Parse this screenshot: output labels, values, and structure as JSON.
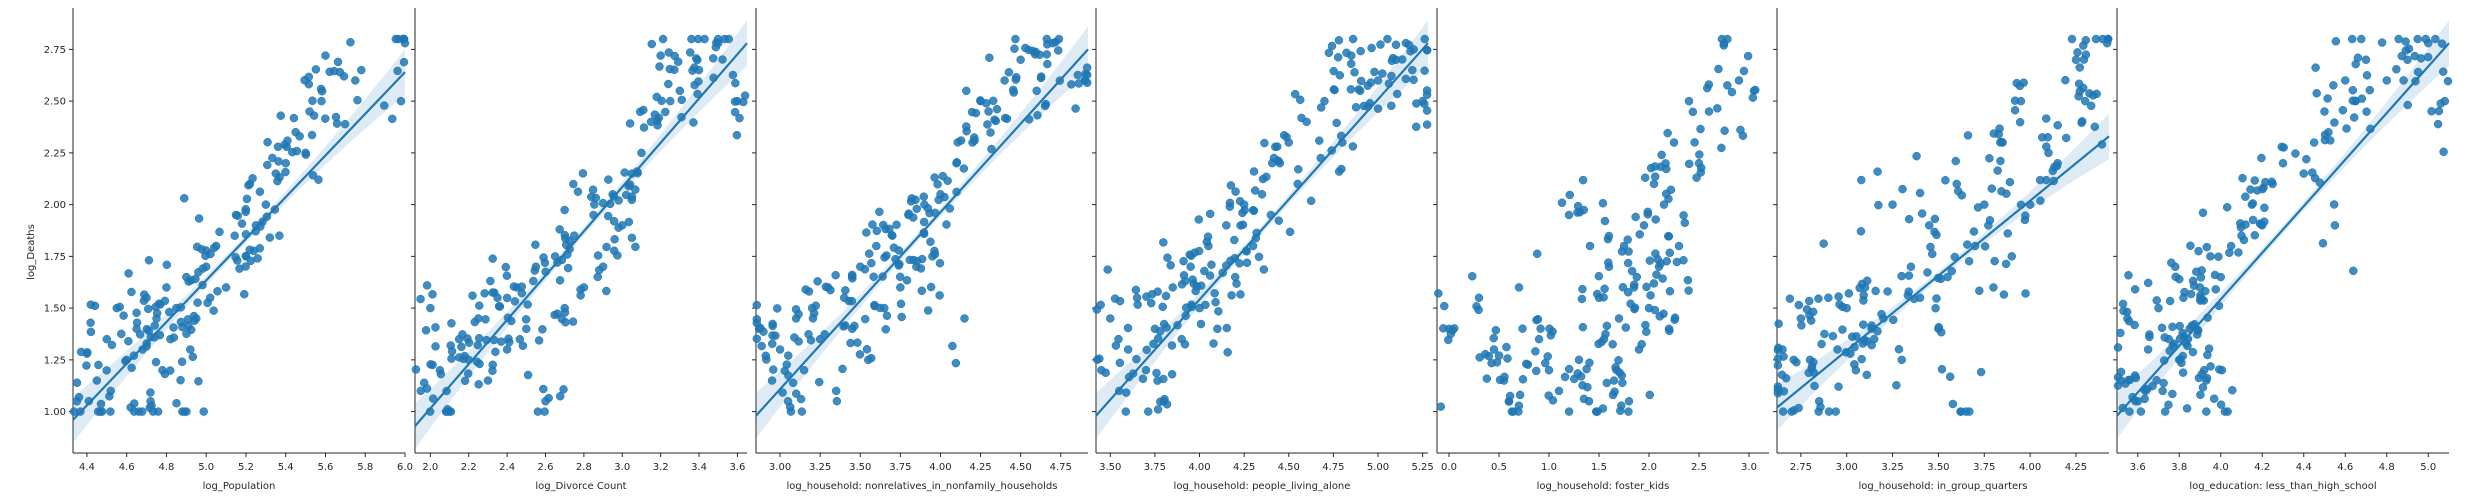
{
  "figure": {
    "ylabel": "log_Deaths"
  },
  "chart_data": [
    {
      "type": "scatter",
      "xlabel": "log_Population",
      "ylabel": "log_Deaths",
      "xlim": [
        4.33,
        6.0
      ],
      "ylim": [
        0.8,
        2.95
      ],
      "xticks": [
        4.4,
        4.6,
        4.8,
        5.0,
        5.2,
        5.4,
        5.6,
        5.8,
        6.0
      ],
      "xtick_labels": [
        "4.4",
        "4.6",
        "4.8",
        "5.0",
        "5.2",
        "5.4",
        "5.6",
        "5.8",
        "6.0"
      ],
      "yticks": [
        1.0,
        1.25,
        1.5,
        1.75,
        2.0,
        2.25,
        2.5,
        2.75
      ],
      "ytick_labels": [
        "1.00",
        "1.25",
        "1.50",
        "1.75",
        "2.00",
        "2.25",
        "2.50",
        "2.75"
      ],
      "regression": {
        "x": [
          4.33,
          6.0
        ],
        "y": [
          0.96,
          2.64
        ]
      },
      "n_points": 220,
      "points": [
        [
          4.35,
          1.05
        ],
        [
          4.4,
          1.28
        ],
        [
          4.45,
          1.15
        ],
        [
          4.5,
          1.35
        ],
        [
          4.52,
          1.1
        ],
        [
          4.55,
          1.5
        ],
        [
          4.6,
          1.25
        ],
        [
          4.62,
          1.02
        ],
        [
          4.65,
          1.4
        ],
        [
          4.68,
          1.3
        ],
        [
          4.7,
          1.55
        ],
        [
          4.72,
          1.05
        ],
        [
          4.75,
          1.45
        ],
        [
          4.78,
          1.2
        ],
        [
          4.8,
          1.6
        ],
        [
          4.82,
          1.35
        ],
        [
          4.85,
          1.5
        ],
        [
          4.88,
          1.0
        ],
        [
          4.9,
          1.65
        ],
        [
          4.92,
          1.3
        ],
        [
          4.95,
          1.45
        ],
        [
          5.0,
          1.7
        ],
        [
          5.02,
          1.55
        ],
        [
          5.05,
          1.8
        ],
        [
          5.1,
          1.6
        ],
        [
          5.15,
          1.95
        ],
        [
          5.2,
          1.75
        ],
        [
          5.22,
          2.1
        ],
        [
          5.25,
          1.9
        ],
        [
          5.3,
          2.0
        ],
        [
          5.35,
          2.15
        ],
        [
          5.4,
          2.2
        ],
        [
          5.45,
          2.35
        ],
        [
          5.5,
          2.25
        ],
        [
          5.52,
          2.45
        ],
        [
          5.58,
          2.5
        ],
        [
          5.6,
          2.72
        ],
        [
          5.75,
          2.6
        ],
        [
          5.98,
          2.5
        ],
        [
          6.0,
          2.78
        ]
      ]
    },
    {
      "type": "scatter",
      "xlabel": "log_Divorce Count",
      "ylabel": "log_Deaths",
      "xlim": [
        1.92,
        3.65
      ],
      "ylim": [
        0.8,
        2.95
      ],
      "xticks": [
        2.0,
        2.2,
        2.4,
        2.6,
        2.8,
        3.0,
        3.2,
        3.4,
        3.6
      ],
      "xtick_labels": [
        "2.0",
        "2.2",
        "2.4",
        "2.6",
        "2.8",
        "3.0",
        "3.2",
        "3.4",
        "3.6"
      ],
      "regression": {
        "x": [
          1.92,
          3.65
        ],
        "y": [
          0.93,
          2.78
        ]
      },
      "n_points": 220,
      "points": [
        [
          1.95,
          1.1
        ],
        [
          2.0,
          1.5
        ],
        [
          2.05,
          1.2
        ],
        [
          2.1,
          1.0
        ],
        [
          2.15,
          1.35
        ],
        [
          2.2,
          1.25
        ],
        [
          2.25,
          1.45
        ],
        [
          2.3,
          1.15
        ],
        [
          2.35,
          1.55
        ],
        [
          2.4,
          1.3
        ],
        [
          2.45,
          1.6
        ],
        [
          2.5,
          1.4
        ],
        [
          2.55,
          1.7
        ],
        [
          2.6,
          1.05
        ],
        [
          2.65,
          1.75
        ],
        [
          2.7,
          1.5
        ],
        [
          2.75,
          1.85
        ],
        [
          2.8,
          1.6
        ],
        [
          2.85,
          1.95
        ],
        [
          2.9,
          1.7
        ],
        [
          2.95,
          2.05
        ],
        [
          3.0,
          1.9
        ],
        [
          3.05,
          2.15
        ],
        [
          3.1,
          2.25
        ],
        [
          3.15,
          2.4
        ],
        [
          3.2,
          2.72
        ],
        [
          3.25,
          2.5
        ],
        [
          3.3,
          2.55
        ],
        [
          3.4,
          2.65
        ],
        [
          3.5,
          2.78
        ],
        [
          3.6,
          2.5
        ]
      ]
    },
    {
      "type": "scatter",
      "xlabel": "log_household: nonrelatives_in_nonfamily_households",
      "ylabel": "log_Deaths",
      "xlim": [
        2.85,
        4.92
      ],
      "ylim": [
        0.8,
        2.95
      ],
      "xticks": [
        3.0,
        3.25,
        3.5,
        3.75,
        4.0,
        4.25,
        4.5,
        4.75
      ],
      "xtick_labels": [
        "3.00",
        "3.25",
        "3.50",
        "3.75",
        "4.00",
        "4.25",
        "4.50",
        "4.75"
      ],
      "regression": {
        "x": [
          2.85,
          4.92
        ],
        "y": [
          0.98,
          2.75
        ]
      },
      "n_points": 220,
      "points": [
        [
          2.87,
          1.4
        ],
        [
          2.95,
          1.15
        ],
        [
          3.0,
          1.3
        ],
        [
          3.05,
          1.05
        ],
        [
          3.1,
          1.45
        ],
        [
          3.15,
          1.2
        ],
        [
          3.2,
          1.5
        ],
        [
          3.25,
          1.35
        ],
        [
          3.3,
          1.6
        ],
        [
          3.35,
          1.1
        ],
        [
          3.4,
          1.55
        ],
        [
          3.45,
          1.4
        ],
        [
          3.5,
          1.7
        ],
        [
          3.55,
          1.25
        ],
        [
          3.6,
          1.8
        ],
        [
          3.65,
          1.5
        ],
        [
          3.7,
          1.85
        ],
        [
          3.75,
          1.6
        ],
        [
          3.8,
          1.95
        ],
        [
          3.85,
          1.7
        ],
        [
          3.9,
          2.0
        ],
        [
          3.95,
          1.75
        ],
        [
          4.0,
          2.05
        ],
        [
          4.1,
          2.2
        ],
        [
          4.15,
          1.45
        ],
        [
          4.2,
          2.3
        ],
        [
          4.25,
          2.5
        ],
        [
          4.3,
          2.45
        ],
        [
          4.4,
          2.6
        ],
        [
          4.5,
          2.7
        ],
        [
          4.6,
          2.55
        ],
        [
          4.7,
          2.78
        ],
        [
          4.9,
          2.6
        ]
      ]
    },
    {
      "type": "scatter",
      "xlabel": "log_household: people_living_alone",
      "ylabel": "log_Deaths",
      "xlim": [
        3.42,
        5.28
      ],
      "ylim": [
        0.8,
        2.95
      ],
      "xticks": [
        3.5,
        3.75,
        4.0,
        4.25,
        4.5,
        4.75,
        5.0,
        5.25
      ],
      "xtick_labels": [
        "3.50",
        "3.75",
        "4.00",
        "4.25",
        "4.50",
        "4.75",
        "5.00",
        "5.25"
      ],
      "regression": {
        "x": [
          3.42,
          5.28
        ],
        "y": [
          0.98,
          2.78
        ]
      },
      "n_points": 220,
      "points": [
        [
          3.45,
          1.2
        ],
        [
          3.5,
          1.45
        ],
        [
          3.55,
          1.1
        ],
        [
          3.6,
          1.3
        ],
        [
          3.65,
          1.55
        ],
        [
          3.7,
          1.2
        ],
        [
          3.75,
          1.4
        ],
        [
          3.8,
          1.05
        ],
        [
          3.85,
          1.6
        ],
        [
          3.9,
          1.35
        ],
        [
          3.95,
          1.7
        ],
        [
          4.0,
          1.5
        ],
        [
          4.05,
          1.8
        ],
        [
          4.1,
          1.4
        ],
        [
          4.15,
          1.9
        ],
        [
          4.2,
          1.65
        ],
        [
          4.25,
          2.0
        ],
        [
          4.3,
          1.8
        ],
        [
          4.35,
          2.05
        ],
        [
          4.4,
          1.95
        ],
        [
          4.45,
          2.2
        ],
        [
          4.5,
          2.3
        ],
        [
          4.55,
          2.1
        ],
        [
          4.6,
          2.4
        ],
        [
          4.7,
          2.5
        ],
        [
          4.8,
          2.3
        ],
        [
          4.85,
          2.72
        ],
        [
          4.9,
          2.55
        ],
        [
          5.0,
          2.6
        ],
        [
          5.1,
          2.7
        ],
        [
          5.2,
          2.75
        ],
        [
          5.25,
          2.5
        ]
      ]
    },
    {
      "type": "scatter",
      "xlabel": "log_household: foster_kids",
      "ylabel": "log_Deaths",
      "xlim": [
        -0.12,
        3.2
      ],
      "ylim": [
        0.8,
        2.95
      ],
      "xticks": [
        0.0,
        0.5,
        1.0,
        1.5,
        2.0,
        2.5,
        3.0
      ],
      "xtick_labels": [
        "0.0",
        "0.5",
        "1.0",
        "1.5",
        "2.0",
        "2.5",
        "3.0"
      ],
      "regression": null,
      "n_points": 220,
      "points": [
        [
          0.0,
          1.4
        ],
        [
          0.3,
          1.55
        ],
        [
          0.45,
          1.3
        ],
        [
          0.55,
          1.15
        ],
        [
          0.6,
          1.05
        ],
        [
          0.7,
          1.6
        ],
        [
          0.9,
          1.35
        ],
        [
          1.0,
          1.2
        ],
        [
          1.1,
          1.1
        ],
        [
          1.2,
          1.95
        ],
        [
          1.3,
          1.25
        ],
        [
          1.4,
          1.05
        ],
        [
          1.5,
          1.55
        ],
        [
          1.55,
          1.35
        ],
        [
          1.6,
          1.7
        ],
        [
          1.65,
          1.15
        ],
        [
          1.7,
          1.45
        ],
        [
          1.75,
          1.8
        ],
        [
          1.8,
          1.05
        ],
        [
          1.85,
          1.6
        ],
        [
          1.9,
          1.3
        ],
        [
          1.95,
          1.9
        ],
        [
          2.0,
          1.5
        ],
        [
          2.05,
          2.1
        ],
        [
          2.1,
          1.7
        ],
        [
          2.15,
          2.0
        ],
        [
          2.2,
          1.4
        ],
        [
          2.25,
          2.3
        ],
        [
          2.3,
          1.8
        ],
        [
          2.4,
          2.5
        ],
        [
          2.5,
          2.2
        ],
        [
          2.6,
          2.45
        ],
        [
          2.75,
          2.78
        ],
        [
          2.9,
          2.6
        ],
        [
          3.05,
          2.55
        ]
      ]
    },
    {
      "type": "scatter",
      "xlabel": "log_household: in_group_quarters",
      "ylabel": "log_Deaths",
      "xlim": [
        2.62,
        4.43
      ],
      "ylim": [
        0.8,
        2.95
      ],
      "xticks": [
        2.75,
        3.0,
        3.25,
        3.5,
        3.75,
        4.0,
        4.25
      ],
      "xtick_labels": [
        "2.75",
        "3.00",
        "3.25",
        "3.50",
        "3.75",
        "4.00",
        "4.25"
      ],
      "regression": {
        "x": [
          2.62,
          4.43
        ],
        "y": [
          1.02,
          2.33
        ]
      },
      "n_points": 220,
      "points": [
        [
          2.63,
          1.1
        ],
        [
          2.65,
          1.3
        ],
        [
          2.7,
          1.0
        ],
        [
          2.75,
          1.45
        ],
        [
          2.8,
          1.25
        ],
        [
          2.85,
          1.05
        ],
        [
          2.9,
          1.55
        ],
        [
          2.95,
          1.3
        ],
        [
          3.0,
          1.5
        ],
        [
          3.05,
          1.2
        ],
        [
          3.1,
          1.6
        ],
        [
          3.15,
          1.35
        ],
        [
          3.2,
          1.45
        ],
        [
          3.25,
          2.0
        ],
        [
          3.3,
          1.25
        ],
        [
          3.35,
          1.7
        ],
        [
          3.4,
          1.55
        ],
        [
          3.45,
          1.9
        ],
        [
          3.5,
          1.4
        ],
        [
          3.55,
          1.65
        ],
        [
          3.6,
          2.1
        ],
        [
          3.65,
          1.0
        ],
        [
          3.7,
          1.8
        ],
        [
          3.75,
          2.0
        ],
        [
          3.8,
          1.6
        ],
        [
          3.85,
          2.3
        ],
        [
          3.9,
          1.75
        ],
        [
          3.95,
          2.5
        ],
        [
          4.0,
          2.0
        ],
        [
          4.1,
          2.25
        ],
        [
          4.15,
          2.2
        ],
        [
          4.25,
          2.7
        ],
        [
          4.3,
          2.5
        ],
        [
          4.42,
          2.78
        ]
      ]
    },
    {
      "type": "scatter",
      "xlabel": "log_education: less_than_high_school",
      "ylabel": "log_Deaths",
      "xlim": [
        3.5,
        5.1
      ],
      "ylim": [
        0.8,
        2.95
      ],
      "xticks": [
        3.6,
        3.8,
        4.0,
        4.2,
        4.4,
        4.6,
        4.8,
        5.0
      ],
      "xtick_labels": [
        "3.6",
        "3.8",
        "4.0",
        "4.2",
        "4.4",
        "4.6",
        "4.8",
        "5.0"
      ],
      "regression": {
        "x": [
          3.5,
          5.1
        ],
        "y": [
          0.98,
          2.78
        ]
      },
      "n_points": 220,
      "points": [
        [
          3.52,
          1.15
        ],
        [
          3.55,
          1.45
        ],
        [
          3.6,
          1.05
        ],
        [
          3.65,
          1.3
        ],
        [
          3.7,
          1.5
        ],
        [
          3.72,
          1.1
        ],
        [
          3.75,
          1.35
        ],
        [
          3.8,
          1.25
        ],
        [
          3.82,
          1.55
        ],
        [
          3.85,
          1.4
        ],
        [
          3.9,
          1.6
        ],
        [
          3.92,
          1.2
        ],
        [
          3.95,
          1.75
        ],
        [
          4.0,
          1.65
        ],
        [
          4.02,
          1.0
        ],
        [
          4.05,
          1.8
        ],
        [
          4.1,
          1.85
        ],
        [
          4.15,
          2.0
        ],
        [
          4.2,
          1.9
        ],
        [
          4.25,
          2.1
        ],
        [
          4.3,
          2.2
        ],
        [
          4.4,
          2.15
        ],
        [
          4.45,
          2.3
        ],
        [
          4.5,
          2.45
        ],
        [
          4.55,
          1.9
        ],
        [
          4.6,
          2.6
        ],
        [
          4.65,
          2.5
        ],
        [
          4.7,
          2.7
        ],
        [
          4.8,
          2.6
        ],
        [
          4.9,
          2.7
        ],
        [
          5.0,
          2.78
        ],
        [
          5.08,
          2.5
        ]
      ]
    }
  ]
}
